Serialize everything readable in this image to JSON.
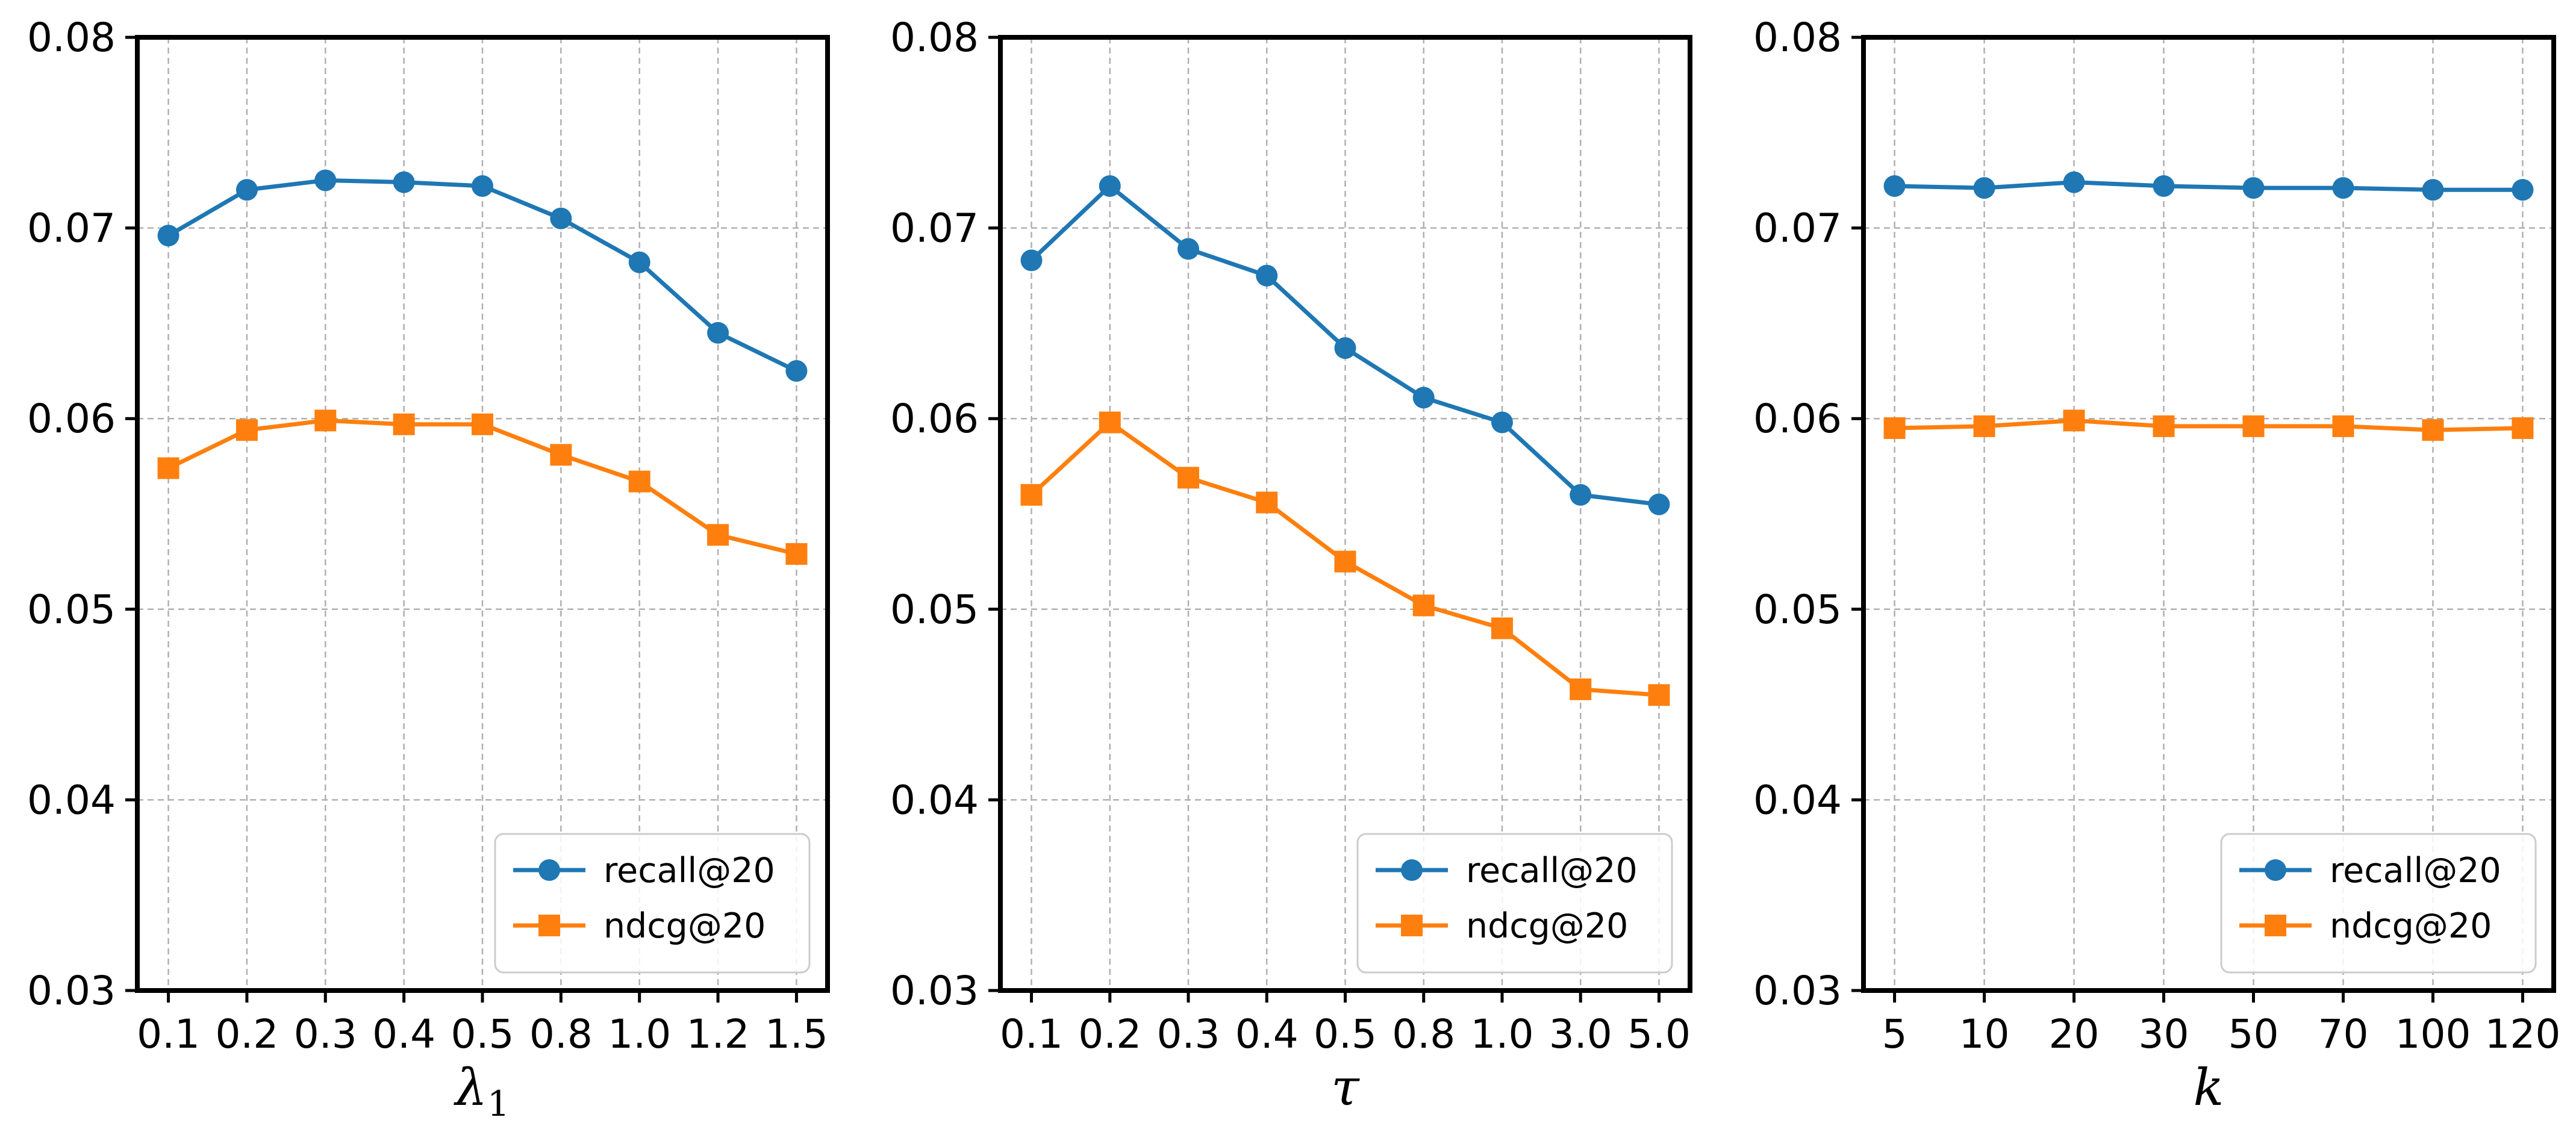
{
  "chart_data": [
    {
      "type": "line",
      "xlabel": "λ",
      "xlabel_sub": "1",
      "categories": [
        "0.1",
        "0.2",
        "0.3",
        "0.4",
        "0.5",
        "0.8",
        "1.0",
        "1.2",
        "1.5"
      ],
      "ylim": [
        0.03,
        0.08
      ],
      "yticks": [
        "0.03",
        "0.04",
        "0.05",
        "0.06",
        "0.07",
        "0.08"
      ],
      "ytick_values": [
        0.03,
        0.04,
        0.05,
        0.06,
        0.07,
        0.08
      ],
      "grid": true,
      "legend_position": "lower-right",
      "series": [
        {
          "name": "recall@20",
          "marker": "circle",
          "color": "#1f77b4",
          "values": [
            0.0696,
            0.072,
            0.0725,
            0.0724,
            0.0722,
            0.0705,
            0.0682,
            0.0645,
            0.0625
          ]
        },
        {
          "name": "ndcg@20",
          "marker": "square",
          "color": "#ff7f0e",
          "values": [
            0.0574,
            0.0594,
            0.0599,
            0.0597,
            0.0597,
            0.0581,
            0.0567,
            0.0539,
            0.0529
          ]
        }
      ]
    },
    {
      "type": "line",
      "xlabel": "τ",
      "xlabel_sub": "",
      "categories": [
        "0.1",
        "0.2",
        "0.3",
        "0.4",
        "0.5",
        "0.8",
        "1.0",
        "3.0",
        "5.0"
      ],
      "ylim": [
        0.03,
        0.08
      ],
      "yticks": [
        "0.03",
        "0.04",
        "0.05",
        "0.06",
        "0.07",
        "0.08"
      ],
      "ytick_values": [
        0.03,
        0.04,
        0.05,
        0.06,
        0.07,
        0.08
      ],
      "grid": true,
      "legend_position": "lower-right",
      "series": [
        {
          "name": "recall@20",
          "marker": "circle",
          "color": "#1f77b4",
          "values": [
            0.0683,
            0.0722,
            0.0689,
            0.0675,
            0.0637,
            0.0611,
            0.0598,
            0.056,
            0.0555
          ]
        },
        {
          "name": "ndcg@20",
          "marker": "square",
          "color": "#ff7f0e",
          "values": [
            0.056,
            0.0598,
            0.0569,
            0.0556,
            0.0525,
            0.0502,
            0.049,
            0.0458,
            0.0455
          ]
        }
      ]
    },
    {
      "type": "line",
      "xlabel": "k",
      "xlabel_sub": "",
      "categories": [
        "5",
        "10",
        "20",
        "30",
        "50",
        "70",
        "100",
        "120"
      ],
      "ylim": [
        0.03,
        0.08
      ],
      "yticks": [
        "0.03",
        "0.04",
        "0.05",
        "0.06",
        "0.07",
        "0.08"
      ],
      "ytick_values": [
        0.03,
        0.04,
        0.05,
        0.06,
        0.07,
        0.08
      ],
      "grid": true,
      "legend_position": "lower-right",
      "series": [
        {
          "name": "recall@20",
          "marker": "circle",
          "color": "#1f77b4",
          "values": [
            0.0722,
            0.0721,
            0.0724,
            0.0722,
            0.0721,
            0.0721,
            0.072,
            0.072
          ]
        },
        {
          "name": "ndcg@20",
          "marker": "square",
          "color": "#ff7f0e",
          "values": [
            0.0595,
            0.0596,
            0.0599,
            0.0596,
            0.0596,
            0.0596,
            0.0594,
            0.0595
          ]
        }
      ]
    }
  ]
}
